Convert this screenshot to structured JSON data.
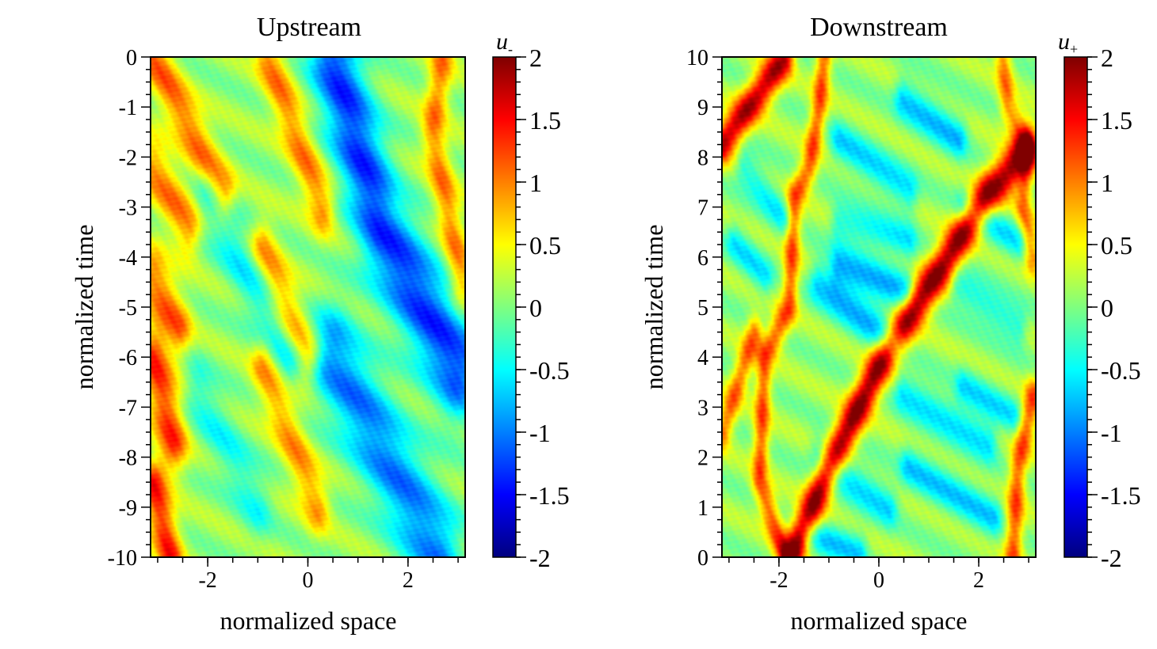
{
  "chart_data": [
    {
      "type": "heatmap",
      "title": "Upstream",
      "xlabel": "normalized space",
      "ylabel": "normalized time",
      "xlim": [
        -3.14159,
        3.14159
      ],
      "ylim": [
        -10,
        0
      ],
      "x_ticks": [
        -2,
        0,
        2
      ],
      "x_tick_labels": [
        "-2",
        "0",
        "2"
      ],
      "y_ticks": [
        0,
        -1,
        -2,
        -3,
        -4,
        -5,
        -6,
        -7,
        -8,
        -9,
        -10
      ],
      "y_tick_labels": [
        "0",
        "-1",
        "-2",
        "-3",
        "-4",
        "-5",
        "-6",
        "-7",
        "-8",
        "-9",
        "-10"
      ],
      "colorbar": {
        "label_base": "u",
        "label_sub": "-",
        "range": [
          -2,
          2
        ],
        "ticks": [
          2,
          1.5,
          1,
          0.5,
          0,
          -0.5,
          -1,
          -1.5,
          -2
        ],
        "tick_labels": [
          "2",
          "1.5",
          "1",
          "0.5",
          "0",
          "-0.5",
          "-1",
          "-1.5",
          "-2"
        ]
      },
      "features": [
        {
          "kind": "ridge",
          "peak": 1.3,
          "width": 0.17,
          "points": [
            [
              -2.75,
              -10
            ],
            [
              -3.1,
              -8.6
            ]
          ]
        },
        {
          "kind": "ridge",
          "peak": 1.2,
          "width": 0.2,
          "points": [
            [
              -2.7,
              -7.7
            ],
            [
              -3.1,
              -6.0
            ]
          ]
        },
        {
          "kind": "ridge",
          "peak": 1.0,
          "width": 0.18,
          "points": [
            [
              -2.6,
              -5.4
            ],
            [
              -3.1,
              -4.4
            ]
          ]
        },
        {
          "kind": "ridge",
          "peak": 0.9,
          "width": 0.18,
          "points": [
            [
              -2.4,
              -3.4
            ],
            [
              -3.1,
              -2.2
            ]
          ]
        },
        {
          "kind": "ridge",
          "peak": 1.0,
          "width": 0.17,
          "points": [
            [
              -1.7,
              -2.7
            ],
            [
              -3.1,
              0
            ]
          ]
        },
        {
          "kind": "ridge",
          "peak": 0.9,
          "width": 0.17,
          "points": [
            [
              0.3,
              -3.0
            ],
            [
              -0.8,
              0
            ]
          ]
        },
        {
          "kind": "ridge",
          "peak": 0.8,
          "width": 0.17,
          "points": [
            [
              0.0,
              -6.0
            ],
            [
              -0.9,
              -3.8
            ]
          ]
        },
        {
          "kind": "ridge",
          "peak": 0.8,
          "width": 0.17,
          "points": [
            [
              0.2,
              -9.0
            ],
            [
              -0.9,
              -6.2
            ]
          ]
        },
        {
          "kind": "ridge",
          "peak": 0.9,
          "width": 0.16,
          "points": [
            [
              3.1,
              -4.5
            ],
            [
              2.5,
              -1.5
            ],
            [
              2.7,
              0
            ]
          ]
        },
        {
          "kind": "ridge",
          "peak": -1.4,
          "width": 0.32,
          "points": [
            [
              3.0,
              -6.2
            ],
            [
              1.5,
              -3.5
            ],
            [
              0.5,
              0
            ]
          ]
        },
        {
          "kind": "ridge",
          "peak": -1.1,
          "width": 0.32,
          "points": [
            [
              2.6,
              -9.9
            ],
            [
              0.5,
              -6.0
            ]
          ]
        },
        {
          "kind": "ridge",
          "peak": -0.6,
          "width": 0.2,
          "points": [
            [
              -0.4,
              -6.0
            ],
            [
              -2.0,
              -2.8
            ]
          ]
        },
        {
          "kind": "ridge",
          "peak": -0.5,
          "width": 0.2,
          "points": [
            [
              -1.0,
              -9.0
            ],
            [
              -2.2,
              -6.7
            ]
          ]
        }
      ]
    },
    {
      "type": "heatmap",
      "title": "Downstream",
      "xlabel": "normalized space",
      "ylabel": "normalized time",
      "xlim": [
        -3.14159,
        3.14159
      ],
      "ylim": [
        0,
        10
      ],
      "x_ticks": [
        -2,
        0,
        2
      ],
      "x_tick_labels": [
        "-2",
        "0",
        "2"
      ],
      "y_ticks": [
        10,
        9,
        8,
        7,
        6,
        5,
        4,
        3,
        2,
        1,
        0
      ],
      "y_tick_labels": [
        "10",
        "9",
        "8",
        "7",
        "6",
        "5",
        "4",
        "3",
        "2",
        "1",
        "0"
      ],
      "colorbar": {
        "label_base": "u",
        "label_sub": "+",
        "range": [
          -2,
          2
        ],
        "ticks": [
          2,
          1.5,
          1,
          0.5,
          0,
          -0.5,
          -1,
          -1.5,
          -2
        ],
        "tick_labels": [
          "2",
          "1.5",
          "1",
          "0.5",
          "0",
          "-0.5",
          "-1",
          "-1.5",
          "-2"
        ]
      },
      "features": [
        {
          "kind": "ridge",
          "peak": 1.9,
          "width": 0.14,
          "points": [
            [
              -1.75,
              0
            ],
            [
              -1.0,
              1.8
            ],
            [
              0.0,
              3.8
            ],
            [
              0.6,
              4.8
            ],
            [
              1.4,
              6.0
            ],
            [
              2.2,
              7.3
            ],
            [
              2.6,
              7.7
            ],
            [
              3.0,
              8.2
            ]
          ]
        },
        {
          "kind": "ridge",
          "peak": 1.7,
          "width": 0.13,
          "points": [
            [
              -3.14,
              8.3
            ],
            [
              -2.4,
              9.3
            ],
            [
              -1.9,
              10
            ]
          ]
        },
        {
          "kind": "ridge",
          "peak": 1.1,
          "width": 0.11,
          "points": [
            [
              -1.9,
              0
            ],
            [
              -2.4,
              1.5
            ],
            [
              -2.3,
              4.0
            ],
            [
              -1.8,
              5.0
            ],
            [
              -1.7,
              7.2
            ],
            [
              -1.4,
              7.8
            ],
            [
              -1.2,
              9.0
            ],
            [
              -1.1,
              10
            ]
          ]
        },
        {
          "kind": "ridge",
          "peak": 1.0,
          "width": 0.11,
          "points": [
            [
              -3.14,
              2.5
            ],
            [
              -2.5,
              4.5
            ]
          ]
        },
        {
          "kind": "ridge",
          "peak": 0.9,
          "width": 0.11,
          "points": [
            [
              2.5,
              10
            ],
            [
              2.6,
              9.0
            ],
            [
              3.0,
              8.2
            ],
            [
              2.9,
              7.0
            ],
            [
              3.1,
              6.0
            ]
          ]
        },
        {
          "kind": "ridge",
          "peak": 1.1,
          "width": 0.12,
          "points": [
            [
              2.7,
              0
            ],
            [
              2.8,
              1.8
            ],
            [
              3.1,
              3.2
            ]
          ]
        },
        {
          "kind": "ridge",
          "peak": -0.8,
          "width": 0.14,
          "points": [
            [
              -0.8,
              5.8
            ],
            [
              0.5,
              5.3
            ]
          ]
        },
        {
          "kind": "ridge",
          "peak": -0.8,
          "width": 0.14,
          "points": [
            [
              -1.2,
              5.5
            ],
            [
              0.3,
              4.3
            ]
          ]
        },
        {
          "kind": "ridge",
          "peak": -0.7,
          "width": 0.13,
          "points": [
            [
              -0.8,
              8.3
            ],
            [
              0.6,
              7.3
            ]
          ]
        },
        {
          "kind": "ridge",
          "peak": -0.8,
          "width": 0.13,
          "points": [
            [
              0.5,
              9.2
            ],
            [
              1.6,
              8.4
            ]
          ]
        },
        {
          "kind": "ridge",
          "peak": -0.7,
          "width": 0.13,
          "points": [
            [
              0.5,
              3.3
            ],
            [
              2.2,
              2.3
            ]
          ]
        },
        {
          "kind": "ridge",
          "peak": -0.7,
          "width": 0.13,
          "points": [
            [
              0.6,
              1.8
            ],
            [
              2.3,
              0.8
            ]
          ]
        },
        {
          "kind": "ridge",
          "peak": -0.7,
          "width": 0.13,
          "points": [
            [
              -1.2,
              2.0
            ],
            [
              0.2,
              1.0
            ]
          ]
        },
        {
          "kind": "ridge",
          "peak": -0.7,
          "width": 0.12,
          "points": [
            [
              -1.4,
              0.4
            ],
            [
              -0.4,
              0.1
            ]
          ]
        },
        {
          "kind": "ridge",
          "peak": -0.6,
          "width": 0.12,
          "points": [
            [
              -2.9,
              6.3
            ],
            [
              -2.3,
              5.6
            ]
          ]
        },
        {
          "kind": "ridge",
          "peak": -0.6,
          "width": 0.12,
          "points": [
            [
              -2.7,
              7.8
            ],
            [
              -1.9,
              6.8
            ]
          ]
        },
        {
          "kind": "ridge",
          "peak": -0.6,
          "width": 0.12,
          "points": [
            [
              1.6,
              5.4
            ],
            [
              2.8,
              4.6
            ]
          ]
        },
        {
          "kind": "ridge",
          "peak": -0.6,
          "width": 0.12,
          "points": [
            [
              1.7,
              3.4
            ],
            [
              2.7,
              2.8
            ]
          ]
        },
        {
          "kind": "ridge",
          "peak": -0.6,
          "width": 0.12,
          "points": [
            [
              -0.8,
              6.7
            ],
            [
              0.6,
              6.3
            ]
          ]
        },
        {
          "kind": "ridge",
          "peak": -0.6,
          "width": 0.12,
          "points": [
            [
              1.7,
              7.0
            ],
            [
              2.8,
              6.3
            ]
          ]
        }
      ]
    }
  ]
}
